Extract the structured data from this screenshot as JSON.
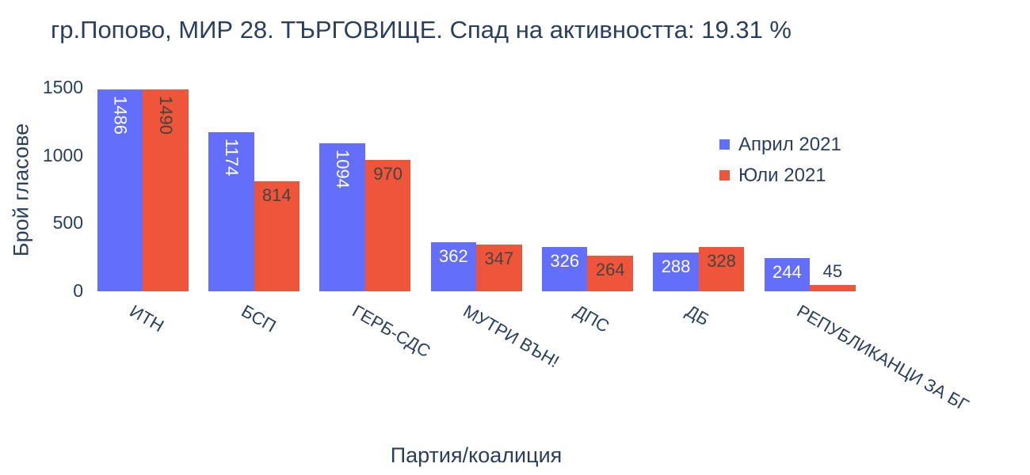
{
  "chart_data": {
    "type": "bar",
    "title": "гр.Попово, МИР 28. ТЪРГОВИЩЕ. Спад на активността: 19.31 %",
    "xlabel": "Партия/коалиция",
    "ylabel": "Брой гласове",
    "categories": [
      "ИТН",
      "БСП",
      "ГЕРБ-СДС",
      "МУТРИ ВЪН!",
      "ДПС",
      "ДБ",
      "РЕПУБЛИКАНЦИ ЗА БГ"
    ],
    "series": [
      {
        "name": "Април 2021",
        "color": "#636efa",
        "label_color": "#ffffff",
        "values": [
          1486,
          1174,
          1094,
          362,
          326,
          288,
          244
        ],
        "rotated_labels": [
          true,
          true,
          true,
          false,
          false,
          false,
          false
        ]
      },
      {
        "name": "Юли 2021",
        "color": "#ef553b",
        "label_color": "#46443f",
        "values": [
          1490,
          814,
          970,
          347,
          264,
          328,
          45
        ],
        "rotated_labels": [
          true,
          false,
          false,
          false,
          false,
          false,
          false
        ]
      }
    ],
    "yticks": [
      0,
      500,
      1000,
      1500
    ],
    "ylim": [
      0,
      1560
    ],
    "grid": false,
    "legend_position": "right-upper",
    "text_color": "#2a3f5f",
    "background": "#ffffff",
    "xtick_angle_deg": 30
  }
}
